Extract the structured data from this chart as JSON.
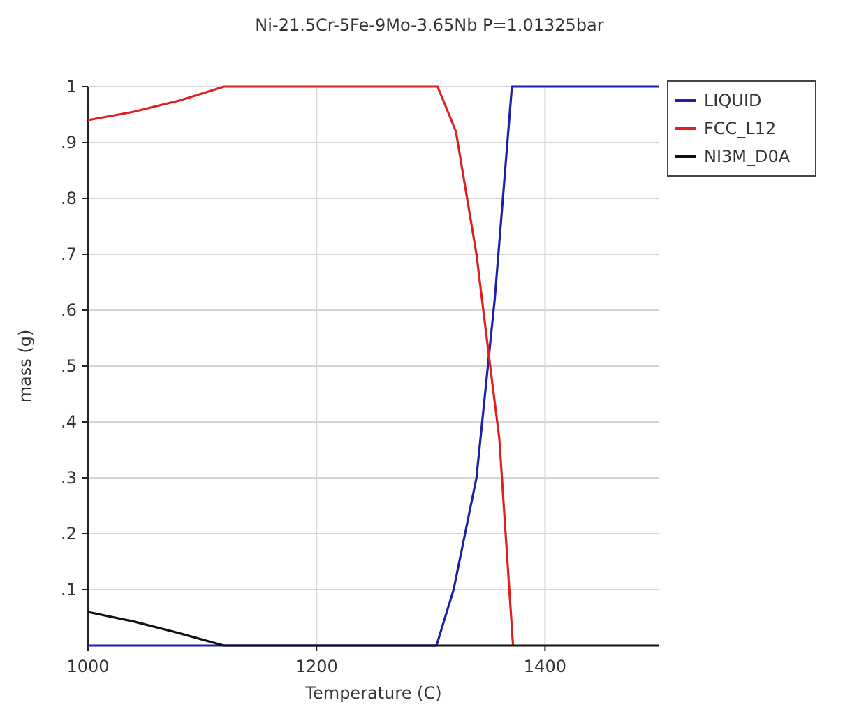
{
  "chart_data": {
    "type": "line",
    "title": "Ni-21.5Cr-5Fe-9Mo-3.65Nb P=1.01325bar",
    "xlabel": "Temperature (C)",
    "ylabel": "mass (g)",
    "xlim": [
      1000,
      1500
    ],
    "ylim": [
      0,
      1
    ],
    "xticks": [
      1000,
      1200,
      1400
    ],
    "yticks": [
      {
        "value": 0.1,
        "label": ".1"
      },
      {
        "value": 0.2,
        "label": ".2"
      },
      {
        "value": 0.3,
        "label": ".3"
      },
      {
        "value": 0.4,
        "label": ".4"
      },
      {
        "value": 0.5,
        "label": ".5"
      },
      {
        "value": 0.6,
        "label": ".6"
      },
      {
        "value": 0.7,
        "label": ".7"
      },
      {
        "value": 0.8,
        "label": ".8"
      },
      {
        "value": 0.9,
        "label": ".9"
      },
      1
    ],
    "grid": true,
    "legend": "top right",
    "line_style": "solid",
    "marker": "none",
    "series": [
      {
        "name": "LIQUID",
        "color": "#1f1fa8",
        "x": [
          1000,
          1305,
          1320,
          1340,
          1356,
          1371,
          1500
        ],
        "values": [
          0,
          0,
          0.1,
          0.3,
          0.62,
          1,
          1
        ]
      },
      {
        "name": "FCC_L12",
        "color": "#e02020",
        "x": [
          1000,
          1040,
          1080,
          1119,
          1306,
          1322,
          1340,
          1352,
          1360,
          1372
        ],
        "values": [
          0.94,
          0.955,
          0.975,
          1,
          1,
          0.92,
          0.7,
          0.5,
          0.37,
          0
        ]
      },
      {
        "name": "NI3M_D0A",
        "color": "#111111",
        "x": [
          1000,
          1040,
          1080,
          1119,
          1500
        ],
        "values": [
          0.06,
          0.043,
          0.022,
          0,
          0
        ]
      }
    ]
  }
}
